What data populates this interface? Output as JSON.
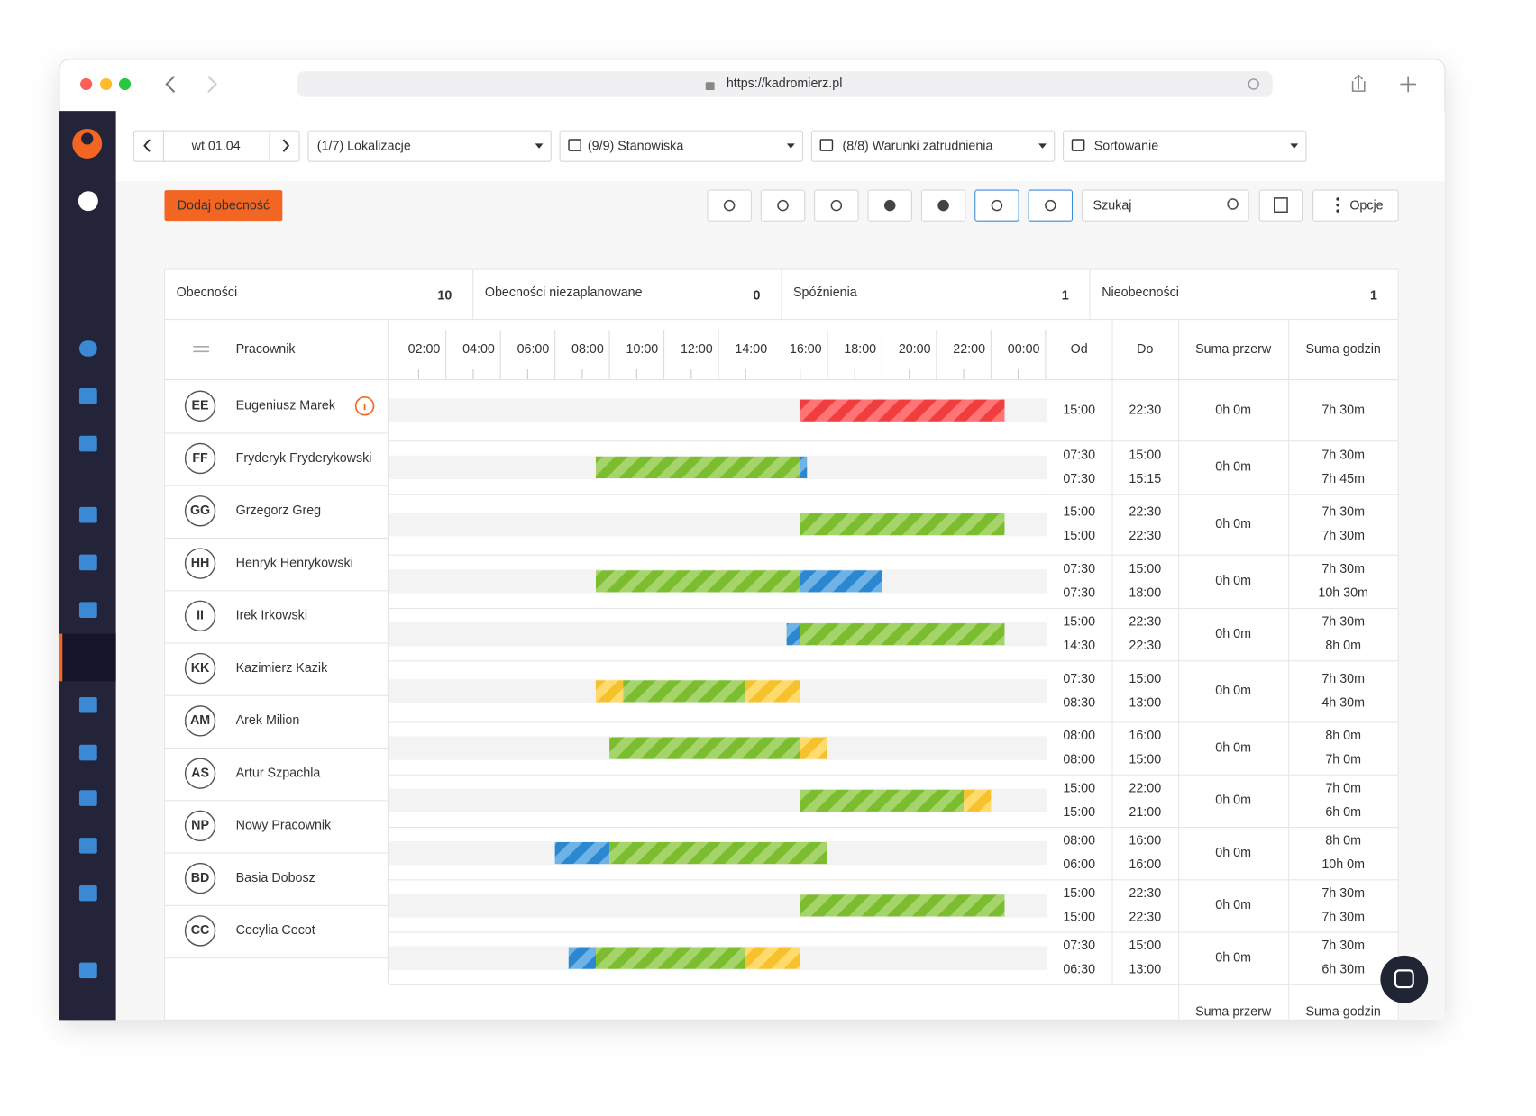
{
  "browser": {
    "url": "https://kadromierz.pl"
  },
  "toolbar": {
    "date": "wt 01.04",
    "locations": "(1/7) Lokalizacje",
    "positions": "(9/9) Stanowiska",
    "conditions": "(8/8) Warunki zatrudnienia",
    "sort": "Sortowanie"
  },
  "actions": {
    "add_button": "Dodaj obecność",
    "search_placeholder": "Szukaj",
    "options": "Opcje"
  },
  "summary": [
    {
      "label": "Obecności",
      "value": 10
    },
    {
      "label": "Obecności niezaplanowane",
      "value": 0
    },
    {
      "label": "Spóźnienia",
      "value": 1
    },
    {
      "label": "Nieobecności",
      "value": 1
    }
  ],
  "table": {
    "header": {
      "employee": "Pracownik",
      "from": "Od",
      "to": "Do",
      "breaks": "Suma przerw",
      "hours": "Suma godzin"
    },
    "timeline_ticks": [
      "02:00",
      "04:00",
      "06:00",
      "08:00",
      "10:00",
      "12:00",
      "14:00",
      "16:00",
      "18:00",
      "20:00",
      "22:00",
      "00:00"
    ],
    "rows": [
      {
        "initials": "EE",
        "name": "Eugeniusz Marek",
        "alert": true,
        "planned_from": "15:00",
        "planned_to": "22:30",
        "breaks": "0h 0m",
        "planned_hours": "7h 30m"
      },
      {
        "initials": "FF",
        "name": "Fryderyk Fryderykowski",
        "planned_from": "07:30",
        "planned_to": "15:00",
        "actual_from": "07:30",
        "actual_to": "15:15",
        "breaks": "0h 0m",
        "planned_hours": "7h 30m",
        "actual_hours": "7h 45m"
      },
      {
        "initials": "GG",
        "name": "Grzegorz Greg",
        "planned_from": "15:00",
        "planned_to": "22:30",
        "actual_from": "15:00",
        "actual_to": "22:30",
        "breaks": "0h 0m",
        "planned_hours": "7h 30m",
        "actual_hours": "7h 30m"
      },
      {
        "initials": "HH",
        "name": "Henryk Henrykowski",
        "planned_from": "07:30",
        "planned_to": "15:00",
        "actual_from": "07:30",
        "actual_to": "18:00",
        "breaks": "0h 0m",
        "planned_hours": "7h 30m",
        "actual_hours": "10h 30m"
      },
      {
        "initials": "II",
        "name": "Irek Irkowski",
        "planned_from": "15:00",
        "planned_to": "22:30",
        "actual_from": "14:30",
        "actual_to": "22:30",
        "breaks": "0h 0m",
        "planned_hours": "7h 30m",
        "actual_hours": "8h 0m"
      },
      {
        "initials": "KK",
        "name": "Kazimierz Kazik",
        "planned_from": "07:30",
        "planned_to": "15:00",
        "actual_from": "08:30",
        "actual_to": "13:00",
        "breaks": "0h 0m",
        "planned_hours": "7h 30m",
        "actual_hours": "4h 30m"
      },
      {
        "initials": "AM",
        "name": "Arek Milion",
        "planned_from": "08:00",
        "planned_to": "16:00",
        "actual_from": "08:00",
        "actual_to": "15:00",
        "breaks": "0h 0m",
        "planned_hours": "8h 0m",
        "actual_hours": "7h 0m"
      },
      {
        "initials": "AS",
        "name": "Artur Szpachla",
        "planned_from": "15:00",
        "planned_to": "22:00",
        "actual_from": "15:00",
        "actual_to": "21:00",
        "breaks": "0h 0m",
        "planned_hours": "7h 0m",
        "actual_hours": "6h 0m"
      },
      {
        "initials": "NP",
        "name": "Nowy Pracownik",
        "planned_from": "08:00",
        "planned_to": "16:00",
        "actual_from": "06:00",
        "actual_to": "16:00",
        "breaks": "0h 0m",
        "planned_hours": "8h 0m",
        "actual_hours": "10h 0m"
      },
      {
        "initials": "BD",
        "name": "Basia Dobosz",
        "planned_from": "15:00",
        "planned_to": "22:30",
        "actual_from": "15:00",
        "actual_to": "22:30",
        "breaks": "0h 0m",
        "planned_hours": "7h 30m",
        "actual_hours": "7h 30m"
      },
      {
        "initials": "CC",
        "name": "Cecylia Cecot",
        "planned_from": "07:30",
        "planned_to": "15:00",
        "actual_from": "06:30",
        "actual_to": "13:00",
        "breaks": "0h 0m",
        "planned_hours": "7h 30m",
        "actual_hours": "6h 30m"
      }
    ],
    "footer": {
      "breaks": "Suma przerw",
      "hours": "Suma godzin"
    }
  }
}
